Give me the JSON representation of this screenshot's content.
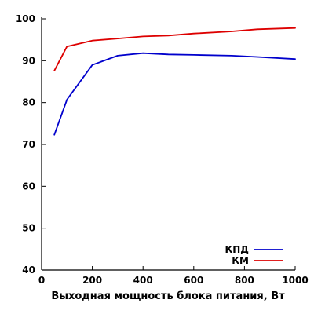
{
  "chart_data": {
    "type": "line",
    "title": "",
    "xlabel": "Выходная мощность блока питания, Вт",
    "ylabel": "",
    "xlim": [
      0,
      1000
    ],
    "ylim": [
      40,
      100
    ],
    "x_ticks": [
      "0",
      "200",
      "400",
      "600",
      "800",
      "1000"
    ],
    "y_ticks": [
      "40",
      "50",
      "60",
      "70",
      "80",
      "90",
      "100"
    ],
    "grid": false,
    "legend_position": "bottom-right",
    "series": [
      {
        "name": "КПД",
        "color": "#0000cc",
        "x": [
          50,
          100,
          200,
          300,
          400,
          500,
          600,
          750,
          850,
          1000
        ],
        "y": [
          72.3,
          80.7,
          89.0,
          91.2,
          91.8,
          91.5,
          91.4,
          91.2,
          90.9,
          90.4
        ]
      },
      {
        "name": "КМ",
        "color": "#dd0000",
        "x": [
          50,
          100,
          200,
          300,
          400,
          500,
          600,
          750,
          850,
          1000
        ],
        "y": [
          87.6,
          93.4,
          94.8,
          95.3,
          95.8,
          96.0,
          96.5,
          97.0,
          97.5,
          97.8
        ]
      }
    ]
  }
}
